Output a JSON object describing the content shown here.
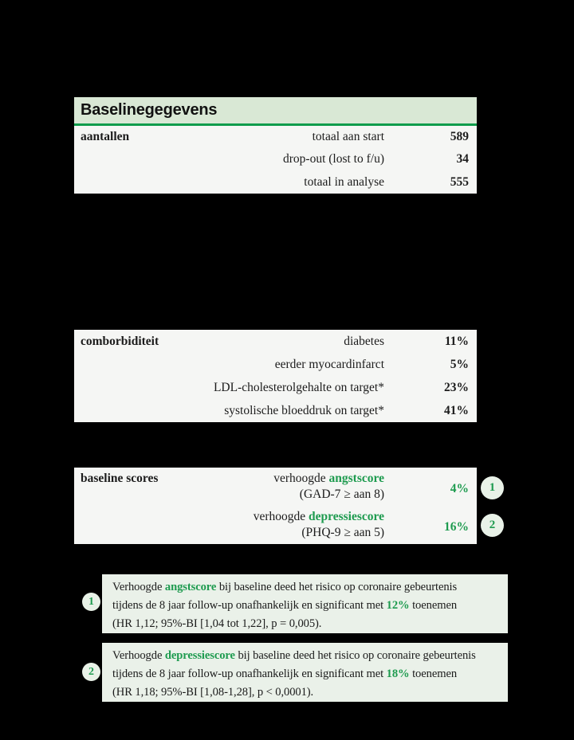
{
  "colors": {
    "page_bg": "#000000",
    "block_bg": "#f5f6f4",
    "header_band_bg": "#d9e8d5",
    "accent_green_line": "#0e9c4b",
    "accent_green_text": "#1e9b4f",
    "note_bg": "#eaf1e9",
    "badge_bg": "#e9f2e8"
  },
  "table": {
    "title": "Baselinegegevens",
    "sections": [
      {
        "label": "aantallen",
        "rows": [
          {
            "name": "totaal aan start",
            "value": "589"
          },
          {
            "name": "drop-out (lost to f/u)",
            "value": "34"
          },
          {
            "name": "totaal in analyse",
            "value": "555"
          }
        ]
      },
      {
        "label": "comborbiditeit",
        "rows": [
          {
            "name": "diabetes",
            "value": "11%"
          },
          {
            "name": "eerder myocardinfarct",
            "value": "5%"
          },
          {
            "name": "LDL-cholesterolgehalte on target*",
            "value": "23%"
          },
          {
            "name": "systolische bloeddruk on target*",
            "value": "41%"
          }
        ]
      },
      {
        "label": "baseline scores",
        "rows": [
          {
            "pre": "verhoogde ",
            "green": "angstscore",
            "sub": "(GAD-7 ≥ aan 8)",
            "value": "4%",
            "badge": "1"
          },
          {
            "pre": "verhoogde ",
            "green": "depressiescore",
            "sub": "(PHQ-9 ≥ aan 5)",
            "value": "16%",
            "badge": "2"
          }
        ]
      }
    ]
  },
  "notes": [
    {
      "badge": "1",
      "line1": {
        "pre": "Verhoogde ",
        "green": "angstscore",
        "post": " bij baseline deed het risico op coronaire gebeurtenis"
      },
      "line2": {
        "pre": "tijdens de 8 jaar follow-up onafhankelijk en significant met ",
        "green": "12%",
        "post": " toenemen"
      },
      "line3": "(HR 1,12; 95%-BI [1,04 tot 1,22], p = 0,005)."
    },
    {
      "badge": "2",
      "line1": {
        "pre": "Verhoogde ",
        "green": "depressiescore",
        "post": " bij baseline deed het risico op coronaire gebeurtenis"
      },
      "line2": {
        "pre": "tijdens de 8 jaar follow-up onafhankelijk en significant met ",
        "green": "18%",
        "post": " toenemen"
      },
      "line3": "(HR 1,18; 95%-BI [1,08-1,28], p < 0,0001)."
    }
  ]
}
